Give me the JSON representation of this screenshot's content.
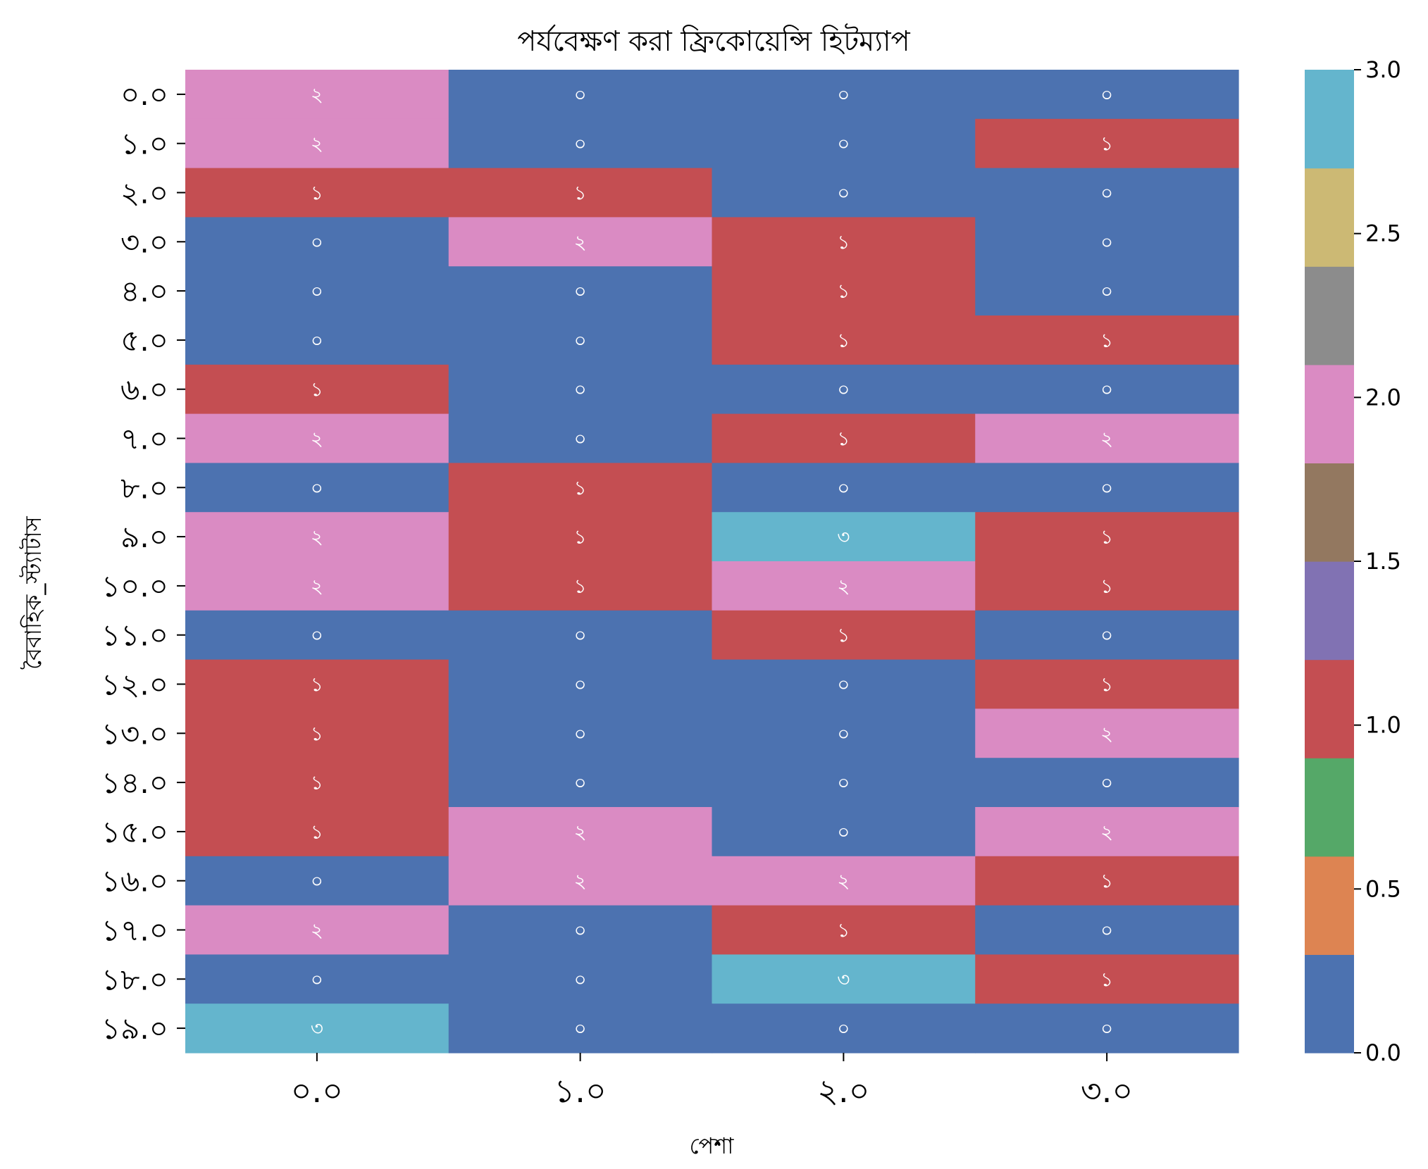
{
  "chart_data": {
    "type": "heatmap",
    "title": "পর্যবেক্ষণ করা ফ্রিকোয়েন্সি হিটম্যাপ",
    "xlabel": "পেশা",
    "ylabel": "বৈবাহিক_স্ট্যাটাস",
    "x_categories": [
      "০.০",
      "১.০",
      "২.০",
      "৩.০"
    ],
    "y_categories": [
      "০.০",
      "১.০",
      "২.০",
      "৩.০",
      "৪.০",
      "৫.০",
      "৬.০",
      "৭.০",
      "৮.০",
      "৯.০",
      "১০.০",
      "১১.০",
      "১২.০",
      "১৩.০",
      "১৪.০",
      "১৫.০",
      "১৬.০",
      "১৭.০",
      "১৮.০",
      "১৯.০"
    ],
    "values": [
      [
        2,
        0,
        0,
        0
      ],
      [
        2,
        0,
        0,
        1
      ],
      [
        1,
        1,
        0,
        0
      ],
      [
        0,
        2,
        1,
        0
      ],
      [
        0,
        0,
        1,
        0
      ],
      [
        0,
        0,
        1,
        1
      ],
      [
        1,
        0,
        0,
        0
      ],
      [
        2,
        0,
        1,
        2
      ],
      [
        0,
        1,
        0,
        0
      ],
      [
        2,
        1,
        3,
        1
      ],
      [
        2,
        1,
        2,
        1
      ],
      [
        0,
        0,
        1,
        0
      ],
      [
        1,
        0,
        0,
        1
      ],
      [
        1,
        0,
        0,
        2
      ],
      [
        1,
        0,
        0,
        0
      ],
      [
        1,
        2,
        0,
        2
      ],
      [
        0,
        2,
        2,
        1
      ],
      [
        2,
        0,
        1,
        0
      ],
      [
        0,
        0,
        3,
        1
      ],
      [
        3,
        0,
        0,
        0
      ]
    ],
    "value_labels": [
      "০",
      "১",
      "২",
      "৩"
    ],
    "colorbar": {
      "range": [
        0,
        3
      ],
      "ticks": [
        0.0,
        0.5,
        1.0,
        1.5,
        2.0,
        2.5,
        3.0
      ],
      "tick_labels": [
        "0.0",
        "0.5",
        "1.0",
        "1.5",
        "2.0",
        "2.5",
        "3.0"
      ],
      "colors": [
        "#4c72b0",
        "#dd8452",
        "#55a868",
        "#c44e52",
        "#8172b3",
        "#937860",
        "#da8bc3",
        "#8c8c8c",
        "#ccb974",
        "#64b5cd"
      ]
    },
    "grid": false,
    "legend": "colorbar-right"
  }
}
